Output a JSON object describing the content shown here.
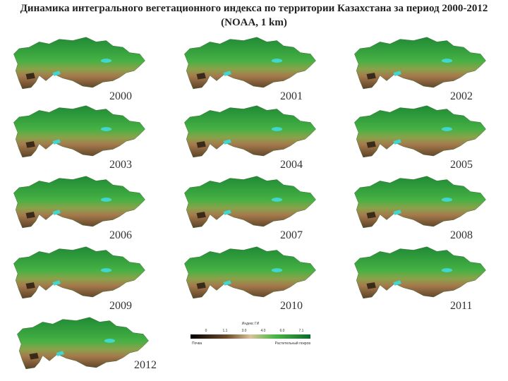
{
  "header": {
    "title": "Динамика интегрального вегетационного индекса по территории Казахстана за период 2000-2012 (NOAA, 1 km)"
  },
  "panels": [
    {
      "year": "2000"
    },
    {
      "year": "2001"
    },
    {
      "year": "2002"
    },
    {
      "year": "2003"
    },
    {
      "year": "2004"
    },
    {
      "year": "2005"
    },
    {
      "year": "2006"
    },
    {
      "year": "2007"
    },
    {
      "year": "2008"
    },
    {
      "year": "2009"
    },
    {
      "year": "2010"
    },
    {
      "year": "2011"
    },
    {
      "year": "2012"
    }
  ],
  "legend": {
    "title": "Индекс ГИ",
    "ticks": [
      "0",
      "1.1",
      "3.0",
      "4.0",
      "6.0",
      "7.1"
    ],
    "low_label": "Почва",
    "high_label": "Растительный покров"
  }
}
